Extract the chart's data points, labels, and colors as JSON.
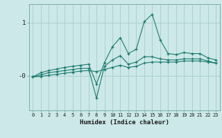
{
  "xlabel": "Humidex (Indice chaleur)",
  "x": [
    0,
    1,
    2,
    3,
    4,
    5,
    6,
    7,
    8,
    9,
    10,
    11,
    12,
    13,
    14,
    15,
    16,
    17,
    18,
    19,
    20,
    21,
    22,
    23
  ],
  "line1": [
    -0.02,
    0.06,
    0.1,
    0.13,
    0.16,
    0.18,
    0.2,
    0.22,
    -0.15,
    0.25,
    0.55,
    0.72,
    0.42,
    0.5,
    1.02,
    1.16,
    0.68,
    0.42,
    0.4,
    0.44,
    0.42,
    0.42,
    0.34,
    0.3
  ],
  "line2": [
    -0.02,
    0.02,
    0.06,
    0.08,
    0.1,
    0.12,
    0.14,
    0.14,
    -0.42,
    0.18,
    0.3,
    0.38,
    0.22,
    0.26,
    0.36,
    0.36,
    0.32,
    0.3,
    0.3,
    0.32,
    0.32,
    0.32,
    0.28,
    0.24
  ],
  "line3": [
    -0.02,
    -0.01,
    0.01,
    0.03,
    0.05,
    0.07,
    0.09,
    0.1,
    0.08,
    0.12,
    0.16,
    0.2,
    0.16,
    0.18,
    0.24,
    0.26,
    0.26,
    0.26,
    0.26,
    0.28,
    0.28,
    0.28,
    0.26,
    0.24
  ],
  "line_color": "#1a7a6e",
  "bg_color": "#cce8e8",
  "grid_color": "#a8cccc",
  "ytick_labels": [
    "-0",
    "1"
  ],
  "ytick_vals": [
    0,
    1
  ],
  "ylim": [
    -0.65,
    1.35
  ],
  "xlim": [
    -0.5,
    23.5
  ]
}
